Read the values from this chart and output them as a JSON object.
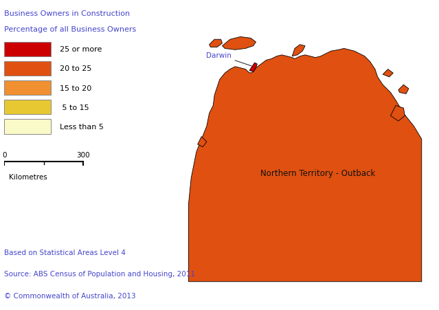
{
  "legend_title_line1": "Business Owners in Construction",
  "legend_title_line2": "Percentage of all Business Owners",
  "legend_items": [
    {
      "label": "25 or more",
      "color": "#CC0000"
    },
    {
      "label": "20 to 25",
      "color": "#E05010"
    },
    {
      "label": "15 to 20",
      "color": "#F09030"
    },
    {
      "label": " 5 to 15",
      "color": "#E8C832"
    },
    {
      "label": "Less than 5",
      "color": "#FAFAC8"
    }
  ],
  "source_lines": [
    "Based on Statistical Areas Level 4",
    "Source: ABS Census of Population and Housing, 2011",
    "© Commonwealth of Australia, 2013"
  ],
  "text_color": "#4444CC",
  "map_outline_color": "#000000",
  "background_color": "#FFFFFF",
  "outback_color": "#E05010",
  "darwin_color": "#CC0000",
  "nt_outback_label": "Northern Territory - Outback",
  "darwin_label": "Darwin"
}
